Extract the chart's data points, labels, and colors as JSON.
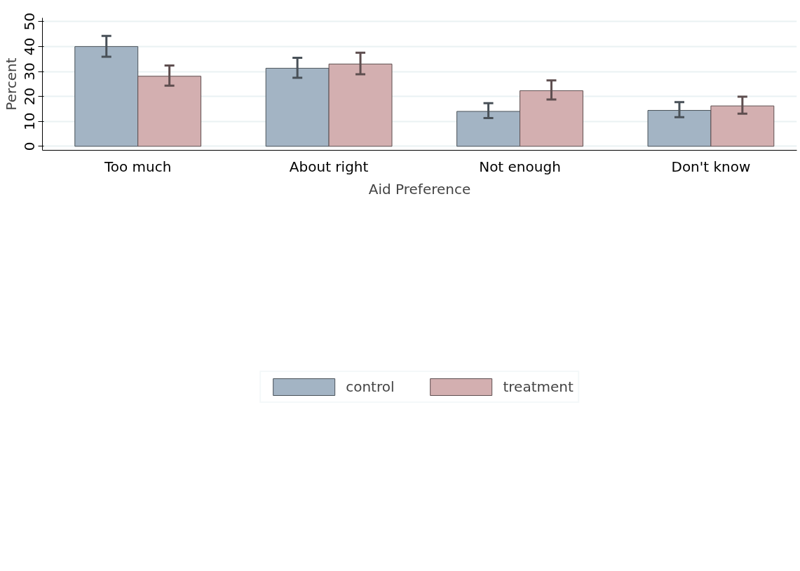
{
  "chart_data": {
    "type": "bar",
    "xlabel": "Aid Preference",
    "ylabel": "Percent",
    "categories": [
      "Too much",
      "About right",
      "Not enough",
      "Don't know"
    ],
    "series": [
      {
        "name": "control",
        "color": "#a3b4c4",
        "values": [
          40.0,
          31.3,
          14.0,
          14.4
        ],
        "errors": [
          [
            35.9,
            44.3
          ],
          [
            27.5,
            35.5
          ],
          [
            11.3,
            17.3
          ],
          [
            11.7,
            17.7
          ]
        ]
      },
      {
        "name": "treatment",
        "color": "#d3afb0",
        "values": [
          28.1,
          33.0,
          22.3,
          16.2
        ],
        "errors": [
          [
            24.3,
            32.4
          ],
          [
            28.9,
            37.5
          ],
          [
            18.8,
            26.4
          ],
          [
            13.1,
            19.9
          ]
        ]
      }
    ],
    "ylim": [
      -1.6,
      51.5
    ],
    "yticks": [
      0,
      10,
      20,
      30,
      40,
      50
    ],
    "grid": "y",
    "legend": "bottom"
  }
}
